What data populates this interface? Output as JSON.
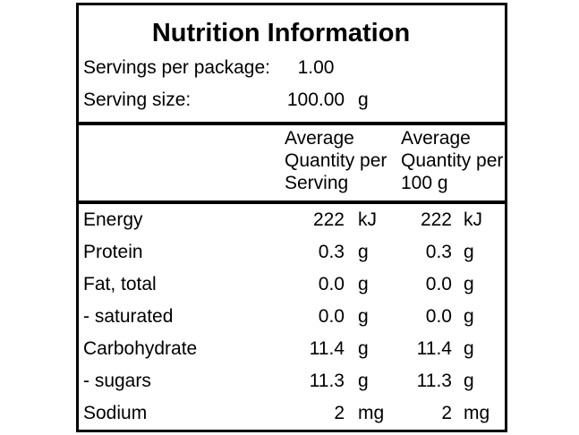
{
  "nutrition_label": {
    "title": "Nutrition Information",
    "servings_row": {
      "label": "Servings per package:",
      "value": "1.00",
      "unit": ""
    },
    "serving_size_row": {
      "label": "Serving size:",
      "value": "100.00",
      "unit": "g"
    },
    "column_headers": {
      "per_serving": [
        "Average",
        "Quantity per",
        "Serving"
      ],
      "per_100g": [
        "Average",
        "Quantity per",
        "100 g"
      ]
    },
    "nutrients": [
      {
        "name": "Energy",
        "per_serving_value": "222",
        "per_serving_unit": "kJ",
        "per_100g_value": "222",
        "per_100g_unit": "kJ"
      },
      {
        "name": "Protein",
        "per_serving_value": "0.3",
        "per_serving_unit": "g",
        "per_100g_value": "0.3",
        "per_100g_unit": "g"
      },
      {
        "name": "Fat, total",
        "per_serving_value": "0.0",
        "per_serving_unit": "g",
        "per_100g_value": "0.0",
        "per_100g_unit": "g"
      },
      {
        "name": "- saturated",
        "per_serving_value": "0.0",
        "per_serving_unit": "g",
        "per_100g_value": "0.0",
        "per_100g_unit": "g"
      },
      {
        "name": "Carbohydrate",
        "per_serving_value": "11.4",
        "per_serving_unit": "g",
        "per_100g_value": "11.4",
        "per_100g_unit": "g"
      },
      {
        "name": "- sugars",
        "per_serving_value": "11.3",
        "per_serving_unit": "g",
        "per_100g_value": "11.3",
        "per_100g_unit": "g"
      },
      {
        "name": "Sodium",
        "per_serving_value": "2",
        "per_serving_unit": "mg",
        "per_100g_value": "2",
        "per_100g_unit": "mg"
      }
    ],
    "colors": {
      "border": "#000000",
      "text": "#000000",
      "background": "#ffffff"
    }
  }
}
